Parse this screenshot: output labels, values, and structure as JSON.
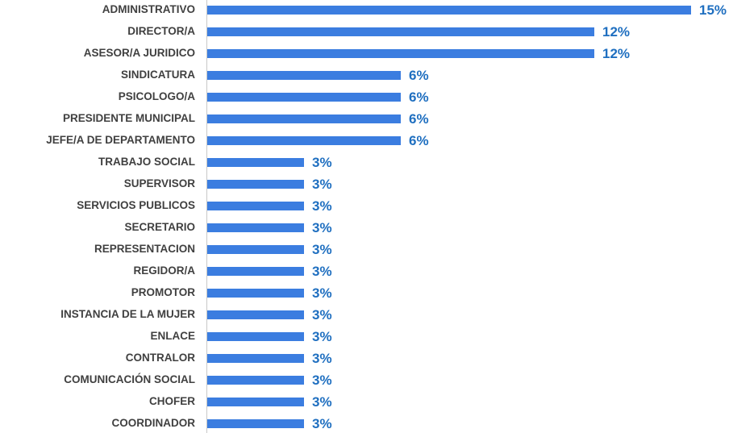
{
  "chart_data": {
    "type": "bar",
    "orientation": "horizontal",
    "categories": [
      "ADMINISTRATIVO",
      "DIRECTOR/A",
      "ASESOR/A JURIDICO",
      "SINDICATURA",
      "PSICOLOGO/A",
      "PRESIDENTE MUNICIPAL",
      "JEFE/A DE DEPARTAMENTO",
      "TRABAJO SOCIAL",
      "SUPERVISOR",
      "SERVICIOS PUBLICOS",
      "SECRETARIO",
      "REPRESENTACION",
      "REGIDOR/A",
      "PROMOTOR",
      "INSTANCIA DE LA MUJER",
      "ENLACE",
      "CONTRALOR",
      "COMUNICACIÓN SOCIAL",
      "CHOFER",
      "COORDINADOR"
    ],
    "values": [
      15,
      12,
      12,
      6,
      6,
      6,
      6,
      3,
      3,
      3,
      3,
      3,
      3,
      3,
      3,
      3,
      3,
      3,
      3,
      3
    ],
    "value_labels": [
      "15%",
      "12%",
      "12%",
      "6%",
      "6%",
      "6%",
      "6%",
      "3%",
      "3%",
      "3%",
      "3%",
      "3%",
      "3%",
      "3%",
      "3%",
      "3%",
      "3%",
      "3%",
      "3%",
      "3%"
    ],
    "color": "#3b7de0"
  }
}
